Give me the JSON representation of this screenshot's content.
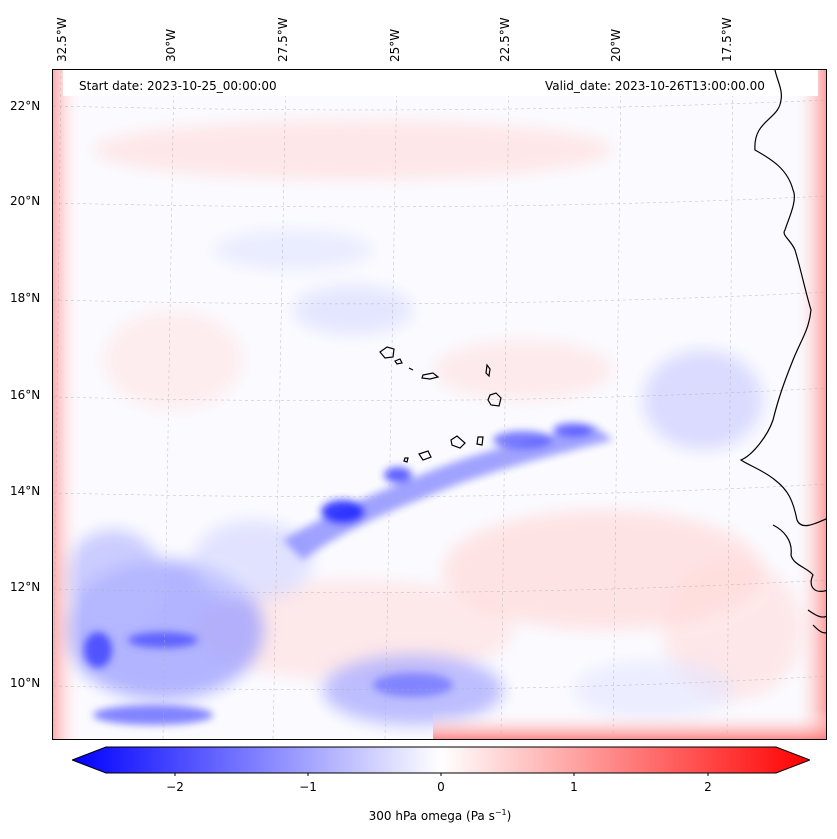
{
  "map": {
    "header_left": "Start date: 2023-10-25_00:00:00",
    "header_right": "Valid_date: 2023-10-26T13:00:00.00",
    "lon_labels": [
      "32.5°W",
      "30°W",
      "27.5°W",
      "25°W",
      "22.5°W",
      "20°W",
      "17.5°W"
    ],
    "lat_labels": [
      "22°N",
      "20°N",
      "18°N",
      "16°N",
      "14°N",
      "12°N",
      "10°N"
    ],
    "colorbar": {
      "ticks": [
        "−2",
        "−1",
        "0",
        "1",
        "2"
      ],
      "label": "300 hPa omega (Pa s",
      "label_sup": "−1",
      "label_close": ")",
      "min_color": "#0000ff",
      "mid_color": "#ffffff",
      "max_color": "#ff0000"
    },
    "regions": [
      "Cabo Verde islands",
      "West Africa coast (Senegal / Guinea-Bissau)"
    ]
  }
}
